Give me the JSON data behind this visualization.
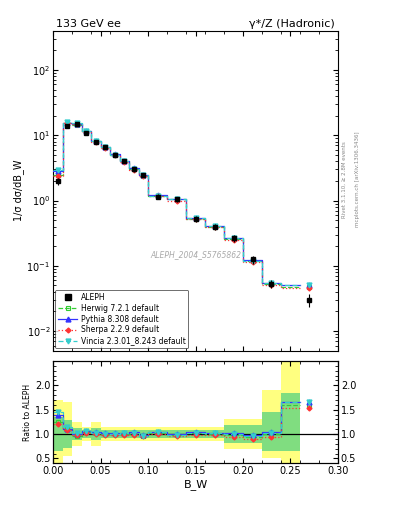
{
  "title_left": "133 GeV ee",
  "title_right": "γ*/Z (Hadronic)",
  "ylabel_main": "1/σ dσ/dB_W",
  "ylabel_ratio": "Ratio to ALEPH",
  "xlabel": "B_W",
  "right_label_top": "Rivet 3.1.10, ≥ 2.8M events",
  "right_label_bottom": "mcplots.cern.ch [arXiv:1306.3436]",
  "watermark": "ALEPH_2004_S5765862",
  "bw_edges": [
    0.0,
    0.01,
    0.02,
    0.03,
    0.04,
    0.05,
    0.06,
    0.07,
    0.08,
    0.09,
    0.1,
    0.12,
    0.14,
    0.16,
    0.18,
    0.2,
    0.22,
    0.24,
    0.26,
    0.28,
    0.3
  ],
  "aleph_y": [
    2.0,
    14.0,
    15.0,
    11.0,
    8.0,
    6.5,
    5.0,
    4.0,
    3.0,
    2.5,
    1.15,
    1.05,
    0.52,
    0.4,
    0.265,
    0.125,
    0.053,
    0.03
  ],
  "aleph_yerr": [
    0.25,
    0.8,
    0.8,
    0.7,
    0.5,
    0.4,
    0.35,
    0.28,
    0.22,
    0.18,
    0.09,
    0.09,
    0.05,
    0.04,
    0.035,
    0.018,
    0.008,
    0.007
  ],
  "herwig_y": [
    2.5,
    15.5,
    14.5,
    11.5,
    8.2,
    6.5,
    5.0,
    4.0,
    3.0,
    2.4,
    1.18,
    1.04,
    0.53,
    0.4,
    0.26,
    0.118,
    0.053,
    0.048
  ],
  "pythia_y": [
    2.8,
    15.5,
    15.0,
    11.8,
    8.3,
    6.6,
    5.1,
    4.1,
    3.1,
    2.45,
    1.2,
    1.06,
    0.545,
    0.41,
    0.27,
    0.123,
    0.055,
    0.05
  ],
  "sherpa_y": [
    2.4,
    15.2,
    14.8,
    11.3,
    8.0,
    6.4,
    4.9,
    3.9,
    2.95,
    2.38,
    1.16,
    1.0,
    0.515,
    0.39,
    0.25,
    0.113,
    0.05,
    0.046
  ],
  "vincia_y": [
    2.9,
    16.0,
    15.2,
    11.6,
    8.25,
    6.55,
    5.05,
    4.05,
    3.05,
    2.42,
    1.19,
    1.04,
    0.535,
    0.41,
    0.263,
    0.12,
    0.054,
    0.05
  ],
  "bw_centers": [
    0.005,
    0.015,
    0.025,
    0.035,
    0.045,
    0.055,
    0.065,
    0.075,
    0.085,
    0.095,
    0.11,
    0.13,
    0.15,
    0.17,
    0.19,
    0.21,
    0.23,
    0.27
  ],
  "herwig_ratio": [
    1.25,
    1.107,
    0.967,
    1.045,
    1.025,
    1.0,
    1.0,
    1.0,
    1.0,
    0.96,
    1.026,
    0.99,
    1.019,
    1.0,
    0.981,
    0.944,
    1.0,
    1.6
  ],
  "pythia_ratio": [
    1.4,
    1.107,
    1.0,
    1.073,
    1.038,
    1.015,
    1.02,
    1.025,
    1.033,
    0.98,
    1.043,
    1.01,
    1.048,
    1.025,
    1.019,
    0.984,
    1.038,
    1.667
  ],
  "sherpa_ratio": [
    1.2,
    1.086,
    0.987,
    1.027,
    1.0,
    0.985,
    0.98,
    0.975,
    0.983,
    0.952,
    1.009,
    0.952,
    0.99,
    0.975,
    0.943,
    0.904,
    0.943,
    1.533
  ],
  "vincia_ratio": [
    1.45,
    1.143,
    1.013,
    1.055,
    1.031,
    1.008,
    1.01,
    1.013,
    1.017,
    0.968,
    1.035,
    0.99,
    1.029,
    1.025,
    0.992,
    0.96,
    1.019,
    1.667
  ],
  "yellow_lo": [
    0.4,
    0.55,
    0.75,
    0.85,
    0.75,
    0.85,
    0.85,
    0.85,
    0.85,
    0.85,
    0.85,
    0.85,
    0.85,
    0.85,
    0.7,
    0.7,
    0.5,
    0.4
  ],
  "yellow_hi": [
    1.7,
    1.65,
    1.25,
    1.15,
    1.25,
    1.15,
    1.15,
    1.15,
    1.15,
    1.15,
    1.15,
    1.15,
    1.15,
    1.15,
    1.3,
    1.3,
    1.9,
    2.5
  ],
  "green_lo": [
    0.65,
    0.72,
    0.87,
    0.92,
    0.87,
    0.92,
    0.92,
    0.92,
    0.92,
    0.92,
    0.92,
    0.92,
    0.92,
    0.92,
    0.82,
    0.82,
    0.65,
    0.65
  ],
  "green_hi": [
    1.35,
    1.28,
    1.13,
    1.08,
    1.13,
    1.08,
    1.08,
    1.08,
    1.08,
    1.08,
    1.08,
    1.08,
    1.08,
    1.08,
    1.18,
    1.18,
    1.45,
    1.85
  ],
  "herwig_color": "#33cc33",
  "pythia_color": "#3333ff",
  "sherpa_color": "#ff3333",
  "vincia_color": "#33cccc",
  "aleph_color": "#000000",
  "yellow_color": "#ffff80",
  "green_color": "#80dd80"
}
